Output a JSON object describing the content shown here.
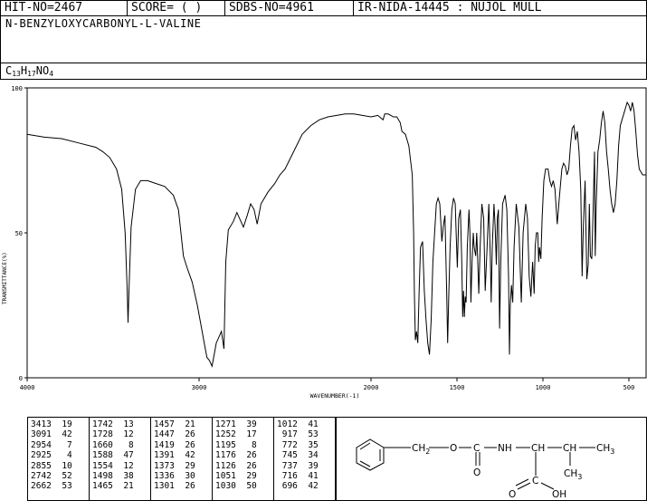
{
  "header": {
    "hit_no": "HIT-NO=2467",
    "score": "SCORE=  (   )",
    "sdbs_no": "SDBS-NO=4961",
    "ir_nida": "IR-NIDA-14445 : NUJOL MULL"
  },
  "compound": {
    "name": "N-BENZYLOXYCARBONYL-L-VALINE",
    "formula_c": "C",
    "formula_c_n": "13",
    "formula_h": "H",
    "formula_h_n": "17",
    "formula_rest": "NO",
    "formula_o_n": "4"
  },
  "chart_data": {
    "type": "line",
    "xlabel": "WAVENUMBER(-1)",
    "ylabel": "TRANSMITTANCE(%)",
    "xlim": [
      4000,
      400
    ],
    "ylim": [
      0,
      100
    ],
    "x_ticks": [
      4000,
      3000,
      2000,
      1500,
      1000,
      500
    ],
    "y_ticks": [
      0,
      50,
      100
    ],
    "grid": false,
    "series": [
      {
        "points": [
          [
            4000,
            84
          ],
          [
            3900,
            83
          ],
          [
            3800,
            82.5
          ],
          [
            3700,
            81
          ],
          [
            3600,
            79.5
          ],
          [
            3560,
            78
          ],
          [
            3520,
            76
          ],
          [
            3480,
            72
          ],
          [
            3450,
            65
          ],
          [
            3430,
            50
          ],
          [
            3418,
            30
          ],
          [
            3413,
            19
          ],
          [
            3408,
            30
          ],
          [
            3395,
            52
          ],
          [
            3370,
            65
          ],
          [
            3340,
            68
          ],
          [
            3300,
            68
          ],
          [
            3250,
            67
          ],
          [
            3200,
            66
          ],
          [
            3150,
            63
          ],
          [
            3120,
            58
          ],
          [
            3091,
            42
          ],
          [
            3070,
            38
          ],
          [
            3040,
            33
          ],
          [
            3010,
            25
          ],
          [
            2985,
            17
          ],
          [
            2970,
            12
          ],
          [
            2954,
            7
          ],
          [
            2940,
            6
          ],
          [
            2925,
            4
          ],
          [
            2915,
            7
          ],
          [
            2900,
            12
          ],
          [
            2870,
            16
          ],
          [
            2855,
            10
          ],
          [
            2845,
            40
          ],
          [
            2830,
            51
          ],
          [
            2800,
            54
          ],
          [
            2780,
            57
          ],
          [
            2742,
            52
          ],
          [
            2720,
            56
          ],
          [
            2700,
            60
          ],
          [
            2680,
            58
          ],
          [
            2662,
            53
          ],
          [
            2640,
            60
          ],
          [
            2600,
            64
          ],
          [
            2560,
            67
          ],
          [
            2530,
            70
          ],
          [
            2500,
            72
          ],
          [
            2450,
            78
          ],
          [
            2400,
            84
          ],
          [
            2350,
            87
          ],
          [
            2300,
            89
          ],
          [
            2250,
            90
          ],
          [
            2200,
            90.5
          ],
          [
            2150,
            91
          ],
          [
            2100,
            91
          ],
          [
            2050,
            90.5
          ],
          [
            2000,
            90
          ],
          [
            1960,
            90.5
          ],
          [
            1930,
            89
          ],
          [
            1920,
            91
          ],
          [
            1900,
            91
          ],
          [
            1870,
            90
          ],
          [
            1850,
            90
          ],
          [
            1830,
            88
          ],
          [
            1820,
            85
          ],
          [
            1800,
            84
          ],
          [
            1780,
            80
          ],
          [
            1760,
            70
          ],
          [
            1752,
            50
          ],
          [
            1748,
            30
          ],
          [
            1742,
            13
          ],
          [
            1735,
            16
          ],
          [
            1728,
            12
          ],
          [
            1720,
            30
          ],
          [
            1712,
            45
          ],
          [
            1700,
            47
          ],
          [
            1690,
            30
          ],
          [
            1680,
            20
          ],
          [
            1670,
            12
          ],
          [
            1660,
            8
          ],
          [
            1650,
            20
          ],
          [
            1640,
            40
          ],
          [
            1630,
            50
          ],
          [
            1620,
            60
          ],
          [
            1610,
            62
          ],
          [
            1600,
            60
          ],
          [
            1595,
            55
          ],
          [
            1588,
            47
          ],
          [
            1580,
            52
          ],
          [
            1570,
            56
          ],
          [
            1560,
            30
          ],
          [
            1554,
            12
          ],
          [
            1548,
            28
          ],
          [
            1540,
            45
          ],
          [
            1530,
            58
          ],
          [
            1520,
            62
          ],
          [
            1510,
            60
          ],
          [
            1505,
            50
          ],
          [
            1498,
            38
          ],
          [
            1490,
            55
          ],
          [
            1480,
            58
          ],
          [
            1472,
            40
          ],
          [
            1467,
            21
          ],
          [
            1462,
            30
          ],
          [
            1457,
            21
          ],
          [
            1452,
            28
          ],
          [
            1447,
            26
          ],
          [
            1440,
            45
          ],
          [
            1430,
            58
          ],
          [
            1425,
            50
          ],
          [
            1419,
            26
          ],
          [
            1412,
            40
          ],
          [
            1405,
            50
          ],
          [
            1400,
            45
          ],
          [
            1391,
            42
          ],
          [
            1385,
            50
          ],
          [
            1380,
            42
          ],
          [
            1373,
            29
          ],
          [
            1365,
            45
          ],
          [
            1355,
            60
          ],
          [
            1345,
            55
          ],
          [
            1336,
            30
          ],
          [
            1325,
            45
          ],
          [
            1315,
            60
          ],
          [
            1305,
            40
          ],
          [
            1301,
            26
          ],
          [
            1295,
            45
          ],
          [
            1285,
            60
          ],
          [
            1278,
            52
          ],
          [
            1271,
            39
          ],
          [
            1265,
            55
          ],
          [
            1259,
            58
          ],
          [
            1252,
            17
          ],
          [
            1245,
            40
          ],
          [
            1235,
            60
          ],
          [
            1220,
            63
          ],
          [
            1210,
            58
          ],
          [
            1200,
            35
          ],
          [
            1195,
            8
          ],
          [
            1190,
            25
          ],
          [
            1183,
            32
          ],
          [
            1176,
            26
          ],
          [
            1168,
            45
          ],
          [
            1155,
            60
          ],
          [
            1140,
            52
          ],
          [
            1126,
            26
          ],
          [
            1115,
            50
          ],
          [
            1100,
            60
          ],
          [
            1090,
            55
          ],
          [
            1080,
            35
          ],
          [
            1070,
            28
          ],
          [
            1060,
            40
          ],
          [
            1051,
            29
          ],
          [
            1045,
            45
          ],
          [
            1038,
            50
          ],
          [
            1030,
            50
          ],
          [
            1025,
            40
          ],
          [
            1020,
            45
          ],
          [
            1012,
            41
          ],
          [
            1005,
            55
          ],
          [
            995,
            68
          ],
          [
            985,
            72
          ],
          [
            970,
            72
          ],
          [
            960,
            68
          ],
          [
            950,
            66
          ],
          [
            940,
            68
          ],
          [
            930,
            65
          ],
          [
            917,
            53
          ],
          [
            905,
            62
          ],
          [
            890,
            72
          ],
          [
            880,
            74
          ],
          [
            870,
            73
          ],
          [
            860,
            70
          ],
          [
            850,
            72
          ],
          [
            840,
            80
          ],
          [
            830,
            86
          ],
          [
            820,
            87
          ],
          [
            810,
            82
          ],
          [
            800,
            85
          ],
          [
            790,
            78
          ],
          [
            780,
            65
          ],
          [
            772,
            35
          ],
          [
            765,
            52
          ],
          [
            755,
            68
          ],
          [
            745,
            34
          ],
          [
            737,
            39
          ],
          [
            730,
            60
          ],
          [
            724,
            42
          ],
          [
            716,
            41
          ],
          [
            708,
            58
          ],
          [
            700,
            78
          ],
          [
            696,
            42
          ],
          [
            690,
            60
          ],
          [
            680,
            78
          ],
          [
            670,
            82
          ],
          [
            660,
            88
          ],
          [
            650,
            92
          ],
          [
            640,
            88
          ],
          [
            630,
            78
          ],
          [
            620,
            72
          ],
          [
            610,
            65
          ],
          [
            600,
            60
          ],
          [
            590,
            57
          ],
          [
            580,
            60
          ],
          [
            570,
            68
          ],
          [
            560,
            80
          ],
          [
            550,
            87
          ],
          [
            540,
            89
          ],
          [
            530,
            91
          ],
          [
            520,
            93
          ],
          [
            510,
            95
          ],
          [
            500,
            94
          ],
          [
            490,
            92
          ],
          [
            480,
            95
          ],
          [
            470,
            92
          ],
          [
            460,
            85
          ],
          [
            450,
            77
          ],
          [
            440,
            72
          ],
          [
            430,
            71
          ],
          [
            420,
            70
          ],
          [
            410,
            70
          ],
          [
            400,
            70
          ]
        ]
      }
    ]
  },
  "peaks": [
    [
      [
        "3413",
        "19"
      ],
      [
        "3091",
        "42"
      ],
      [
        "2954",
        "7"
      ],
      [
        "2925",
        "4"
      ],
      [
        "2855",
        "10"
      ],
      [
        "2742",
        "52"
      ],
      [
        "2662",
        "53"
      ]
    ],
    [
      [
        "1742",
        "13"
      ],
      [
        "1728",
        "12"
      ],
      [
        "1660",
        "8"
      ],
      [
        "1588",
        "47"
      ],
      [
        "1554",
        "12"
      ],
      [
        "1498",
        "38"
      ],
      [
        "1465",
        "21"
      ]
    ],
    [
      [
        "1457",
        "21"
      ],
      [
        "1447",
        "26"
      ],
      [
        "1419",
        "26"
      ],
      [
        "1391",
        "42"
      ],
      [
        "1373",
        "29"
      ],
      [
        "1336",
        "30"
      ],
      [
        "1301",
        "26"
      ]
    ],
    [
      [
        "1271",
        "39"
      ],
      [
        "1252",
        "17"
      ],
      [
        "1195",
        "8"
      ],
      [
        "1176",
        "26"
      ],
      [
        "1126",
        "26"
      ],
      [
        "1051",
        "29"
      ],
      [
        "1030",
        "50"
      ]
    ],
    [
      [
        "1012",
        "41"
      ],
      [
        "917",
        "53"
      ],
      [
        "772",
        "35"
      ],
      [
        "745",
        "34"
      ],
      [
        "737",
        "39"
      ],
      [
        "716",
        "41"
      ],
      [
        "696",
        "42"
      ]
    ]
  ],
  "structure": {
    "ch2": "CH",
    "ch2_n": "2",
    "o1": "O",
    "c": "C",
    "nh": "NH",
    "ch_a": "CH",
    "ch_b": "CH",
    "ch3_a": "CH",
    "ch3_a_n": "3",
    "ch3_b": "CH",
    "ch3_b_n": "3",
    "o_carbonyl": "O",
    "c_acid": "C",
    "o_acid": "O",
    "oh": "OH"
  }
}
